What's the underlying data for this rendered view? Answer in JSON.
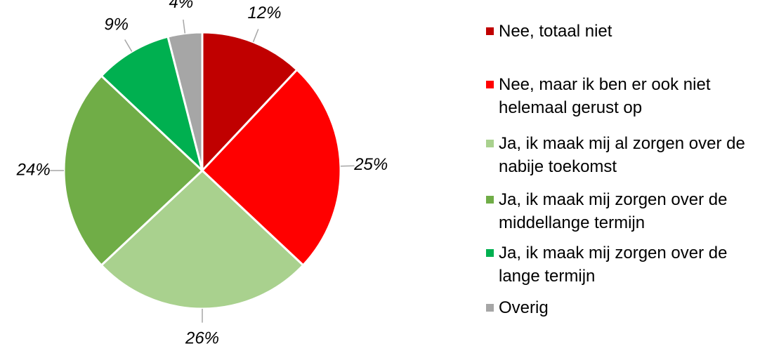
{
  "chart_data": {
    "type": "pie",
    "categories": [
      "Nee, totaal niet",
      "Nee, maar ik ben er ook niet helemaal gerust op",
      "Ja, ik maak mij al zorgen over de nabije toekomst",
      "Ja, ik maak mij zorgen over de middellange termijn",
      "Ja, ik maak mij zorgen over de lange termijn",
      "Overig"
    ],
    "values": [
      12,
      25,
      26,
      24,
      9,
      4
    ],
    "value_labels": [
      "12%",
      "25%",
      "26%",
      "24%",
      "9%",
      "4%"
    ],
    "colors": [
      "#c00000",
      "#ff0000",
      "#a9d18e",
      "#70ad47",
      "#00b050",
      "#a6a6a6"
    ],
    "legend": "right"
  }
}
